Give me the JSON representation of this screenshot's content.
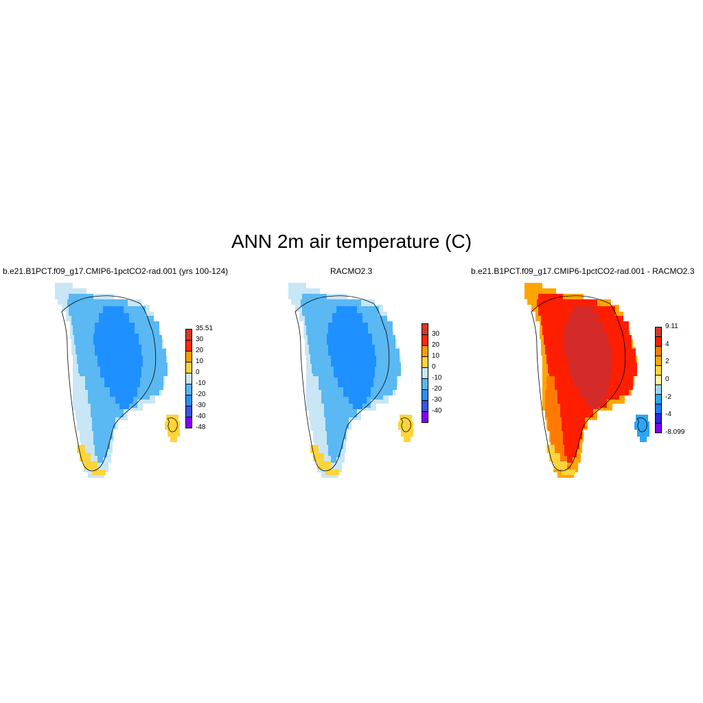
{
  "figure": {
    "title": "ANN 2m air temperature (C)"
  },
  "panels": [
    {
      "id": "model",
      "title": "b.e21.B1PCT.f09_g17.CMIP6-1pctCO2-rad.001 (yrs 100-124)",
      "colors": [
        "#7f00ff",
        "#3a56e6",
        "#2a8ff5",
        "#5ab8f2",
        "#c8e6f5",
        "#ffd43b",
        "#ff9d00",
        "#ff2a00",
        "#d23a2c"
      ],
      "labels": [
        "-48",
        "-40",
        "-30",
        "-20",
        "-10",
        "0",
        "10",
        "20",
        "30",
        "35.51"
      ],
      "zones": {
        "interior": "#1e90ff",
        "middle": "#5ab8f2",
        "coast": "#c8e6f5",
        "outer": "#c8e6f5",
        "warm": "#ffd43b",
        "warm2": "#ffd43b"
      }
    },
    {
      "id": "racmo",
      "title": "RACMO2.3",
      "colors": [
        "#7f00ff",
        "#3a56e6",
        "#2a8ff5",
        "#5ab8f2",
        "#c8e6f5",
        "#ffd43b",
        "#ff9d00",
        "#ff2a00",
        "#d23a2c"
      ],
      "labels": [
        "-40",
        "-30",
        "-20",
        "-10",
        "0",
        "10",
        "20",
        "30"
      ],
      "zones": {
        "interior": "#1e90ff",
        "middle": "#5ab8f2",
        "coast": "#c8e6f5",
        "outer": "#c8e6f5",
        "warm": "#ffd43b",
        "warm2": "#ffd43b"
      }
    },
    {
      "id": "diff",
      "title": "b.e21.B1PCT.f09_g17.CMIP6-1pctCO2-rad.001 - RACMO2.3",
      "colors": [
        "#7f00ff",
        "#2828e6",
        "#1e78ff",
        "#2ea5f5",
        "#9cd3f5",
        "#fff6a0",
        "#ffd43b",
        "#ffa500",
        "#ff7a00",
        "#ff1e00",
        "#d23a2c"
      ],
      "labels": [
        "-8.099",
        "-4",
        "-2",
        "0",
        "2",
        "4",
        "9.11"
      ],
      "zones": {
        "interior": "#d42a2a",
        "middle": "#ff1e00",
        "coast": "#ff7a00",
        "outer": "#ffa500",
        "warm": "#ffd43b",
        "warm2": "#2ea5f5"
      }
    }
  ]
}
